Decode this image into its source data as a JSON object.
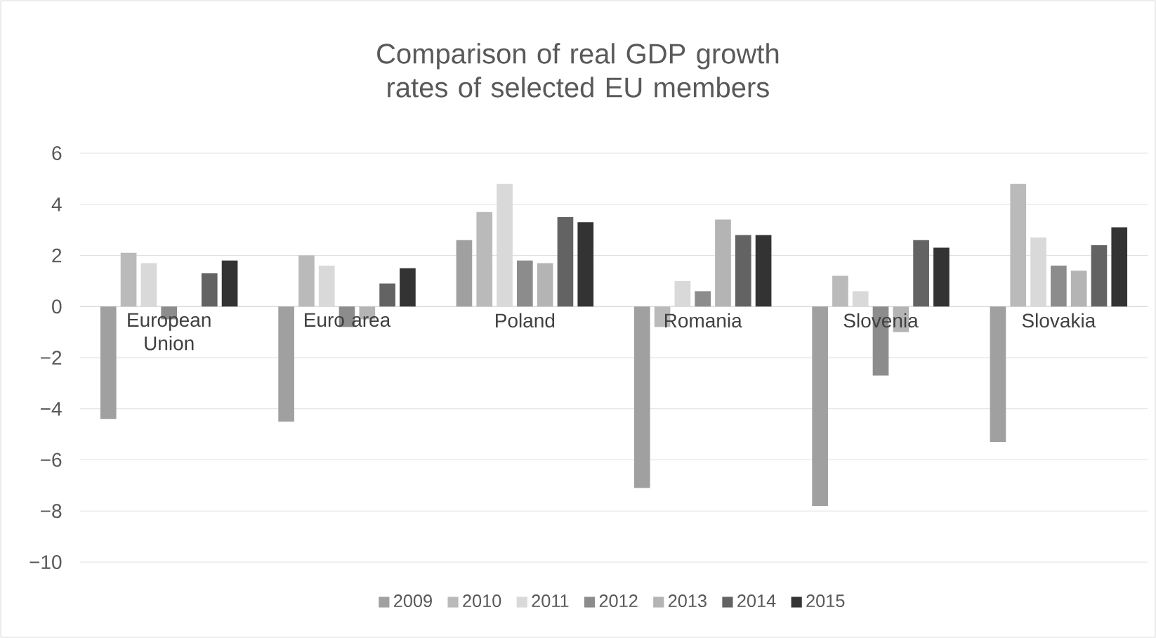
{
  "chart_data": {
    "type": "bar",
    "title": "Comparison of real GDP growth rates of selected EU members",
    "categories": [
      "European Union",
      "Euro area",
      "Poland",
      "Romania",
      "Slovenia",
      "Slovakia"
    ],
    "series": [
      {
        "name": "2009",
        "color": "#a0a0a0",
        "values": [
          -4.4,
          -4.5,
          2.6,
          -7.1,
          -7.8,
          -5.3
        ]
      },
      {
        "name": "2010",
        "color": "#bababa",
        "values": [
          2.1,
          2.0,
          3.7,
          -0.8,
          1.2,
          4.8
        ]
      },
      {
        "name": "2011",
        "color": "#d9d9d9",
        "values": [
          1.7,
          1.6,
          4.8,
          1.0,
          0.6,
          2.7
        ]
      },
      {
        "name": "2012",
        "color": "#8c8c8c",
        "values": [
          -0.5,
          -0.8,
          1.8,
          0.6,
          -2.7,
          1.6
        ]
      },
      {
        "name": "2013",
        "color": "#b4b4b4",
        "values": [
          0.0,
          -0.5,
          1.7,
          3.4,
          -1.0,
          1.4
        ]
      },
      {
        "name": "2014",
        "color": "#636363",
        "values": [
          1.3,
          0.9,
          3.5,
          2.8,
          2.6,
          2.4
        ]
      },
      {
        "name": "2015",
        "color": "#333333",
        "values": [
          1.8,
          1.5,
          3.3,
          2.8,
          2.3,
          3.1
        ]
      }
    ],
    "ylim": [
      -10,
      6
    ],
    "yticks": [
      {
        "value": -10,
        "label": "−10"
      },
      {
        "value": -8,
        "label": "−8"
      },
      {
        "value": -6,
        "label": "−6"
      },
      {
        "value": -4,
        "label": "−4"
      },
      {
        "value": -2,
        "label": "−2"
      },
      0,
      2,
      4,
      6
    ],
    "grid": "y",
    "legend": "bottom"
  }
}
